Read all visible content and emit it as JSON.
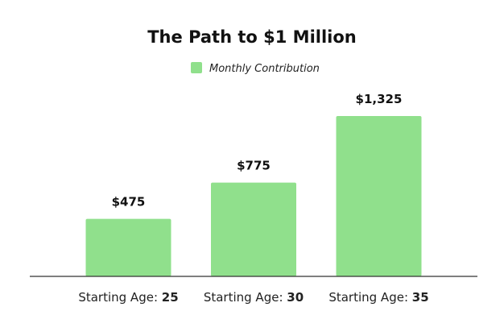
{
  "chart_data": {
    "type": "bar",
    "title": "The Path to $1 Million",
    "legend": {
      "position": "top-center",
      "label": "Monthly Contribution"
    },
    "category_prefix": "Starting Age: ",
    "categories": [
      "25",
      "30",
      "35"
    ],
    "series": [
      {
        "name": "Monthly Contribution",
        "values": [
          475,
          775,
          1325
        ],
        "value_labels": [
          "$475",
          "$775",
          "$1,325"
        ],
        "color": "#90e08c"
      }
    ],
    "xlabel": "",
    "ylabel": "",
    "ylim": [
      0,
      1325
    ],
    "grid": false
  }
}
